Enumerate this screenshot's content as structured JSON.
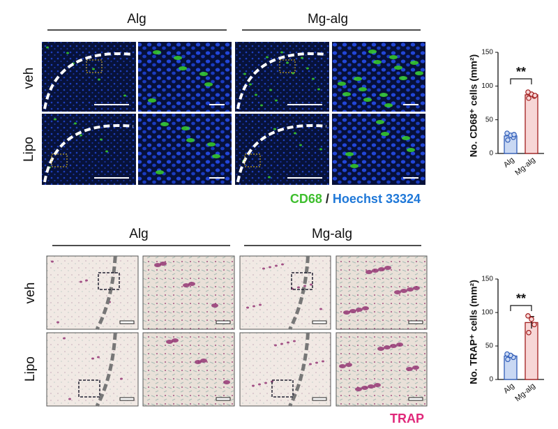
{
  "top_panel": {
    "columns": [
      "Alg",
      "Mg-alg"
    ],
    "rows": [
      "veh",
      "Lipo"
    ],
    "legend": {
      "stain1": "CD68",
      "separator": "/",
      "stain2": "Hoechst 33324"
    }
  },
  "bottom_panel": {
    "columns": [
      "Alg",
      "Mg-alg"
    ],
    "rows": [
      "veh",
      "Lipo"
    ],
    "legend": "TRAP"
  },
  "chart_data": [
    {
      "type": "bar",
      "y_label": "No. CD68⁺ cells (mm²)",
      "categories": [
        "Alg",
        "Mg-alg"
      ],
      "values": [
        26,
        87
      ],
      "errors": [
        3,
        2
      ],
      "points": [
        [
          20,
          24,
          27,
          30,
          28
        ],
        [
          82,
          85,
          88,
          91,
          86
        ]
      ],
      "colors": [
        "#c9d8f3",
        "#f7d6d6"
      ],
      "edge_colors": [
        "#2f5cb8",
        "#a11c1c"
      ],
      "ylim": [
        0,
        150
      ],
      "yticks": [
        0,
        50,
        100,
        150
      ],
      "annotation": "**"
    },
    {
      "type": "bar",
      "y_label": "No. TRAP⁺ cells (mm²)",
      "categories": [
        "Alg",
        "Mg-alg"
      ],
      "values": [
        35,
        85
      ],
      "errors": [
        2,
        9
      ],
      "points": [
        [
          30,
          33,
          36,
          38
        ],
        [
          70,
          82,
          90,
          95
        ]
      ],
      "colors": [
        "#c9d8f3",
        "#f7d6d6"
      ],
      "edge_colors": [
        "#2f5cb8",
        "#a11c1c"
      ],
      "ylim": [
        0,
        150
      ],
      "yticks": [
        0,
        50,
        100,
        150
      ],
      "annotation": "**"
    }
  ]
}
